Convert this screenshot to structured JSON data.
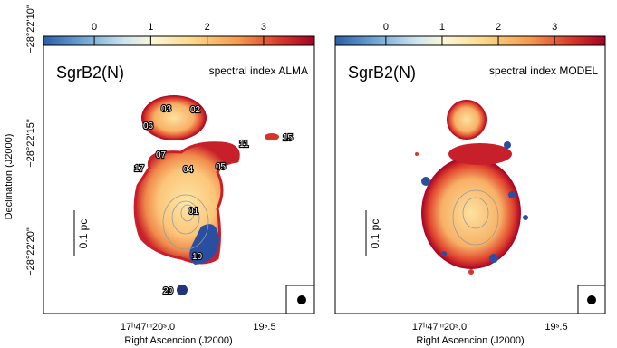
{
  "figure": {
    "colorbar": {
      "lim": [
        -0.9,
        3.9
      ],
      "ticks": [
        0,
        1,
        2,
        3
      ]
    },
    "panels": [
      {
        "name": "SgrB2(N)",
        "title": "spectral index ALMA",
        "scale_bar": "0.1 pc",
        "sources": [
          "03",
          "02",
          "06",
          "07",
          "17",
          "04",
          "05",
          "11",
          "15",
          "01",
          "10",
          "20"
        ]
      },
      {
        "name": "SgrB2(N)",
        "title": "spectral index MODEL",
        "scale_bar": "0.1 pc"
      }
    ],
    "y_axis": {
      "label": "Declination (J2000)",
      "ticks": [
        "−28°22'10\"",
        "−28°22'15\"",
        "−28°22'20\""
      ]
    },
    "x_axis": {
      "label": "Right Ascencion (J2000)",
      "ticks": [
        "17ʰ47ᵐ20ˢ.0",
        "19ˢ.5"
      ]
    }
  }
}
